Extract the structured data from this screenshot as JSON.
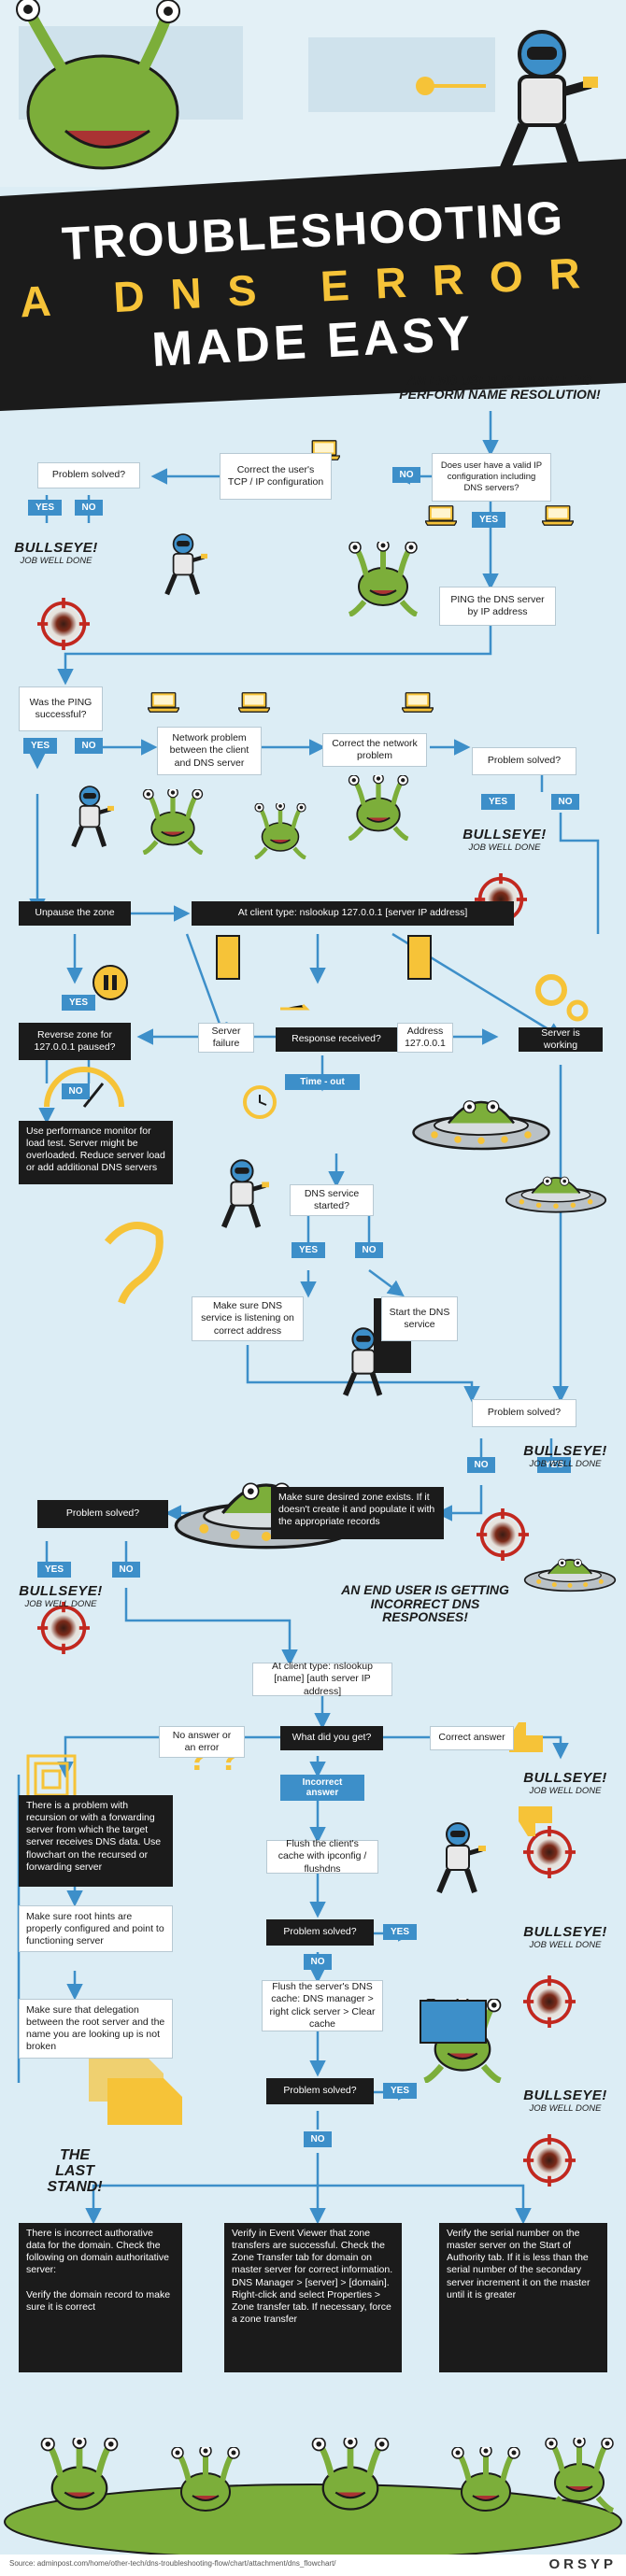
{
  "title": {
    "line1": "TROUBLESHOOTING",
    "line2": "A DNS ERROR",
    "line3": "MADE EASY"
  },
  "intro": "AN END USER IS UNABLE TO PERFORM NAME RESOLUTION!",
  "incorrect_banner": "AN END USER IS GETTING INCORRECT DNS RESPONSES!",
  "last_stand": "THE LAST STAND!",
  "bullseye": {
    "title": "BULLSEYE!",
    "subtitle": "JOB WELL DONE"
  },
  "labels": {
    "yes": "YES",
    "no": "NO"
  },
  "steps": {
    "valid_ip": "Does user have a valid IP configuration including DNS servers?",
    "correct_tcp": "Correct the user's TCP / IP configuration",
    "solved": "Problem solved?",
    "ping_dns": "PING the DNS server by IP address",
    "ping_success": "Was the PING successful?",
    "network_problem": "Network problem between the client and DNS server",
    "correct_network": "Correct the network problem",
    "unpause": "Unpause the zone",
    "nslookup1": "At client type: nslookup 127.0.0.1 [server IP address]",
    "reverse_zone": "Reverse zone for 127.0.0.1 paused?",
    "server_failure": "Server failure",
    "response_received": "Response received?",
    "address": "Address 127.0.0.1",
    "server_working": "Server is working",
    "timeout": "Time - out",
    "perf_monitor": "Use performance monitor for load test. Server might be overloaded. Reduce server load or add additional DNS servers",
    "dns_started": "DNS service started?",
    "make_sure_listening": "Make sure DNS service is listening on correct address",
    "start_dns": "Start the DNS service",
    "zone_exists": "Make sure desired zone exists. If it doesn't create it and populate it with the appropriate records",
    "nslookup2": "At client type: nslookup [name] [auth server IP address]",
    "what_get": "What did you get?",
    "no_answer": "No answer or an error",
    "correct_answer": "Correct answer",
    "incorrect_answer": "Incorrect answer",
    "recursion": "There is a problem with recursion or with a forwarding server from which the target server receives DNS data. Use flowchart on the recursed or forwarding server",
    "root_hints": "Make sure root hints are properly configured and point to functioning server",
    "delegation": "Make sure that delegation between the root server and the name you are looking up is not broken",
    "flush_client": "Flush the client's cache with ipconfig / flushdns",
    "flush_server": "Flush the server's DNS cache: DNS manager > right click server > Clear cache",
    "incorrect_auth": "There is incorrect authorative data for the domain. Check the following on domain authoritative server:\n\nVerify the domain record to make sure it is correct",
    "event_viewer": "Verify in Event Viewer that zone transfers are successful. Check the Zone Transfer tab for domain on master server for correct information. DNS Manager > [server] > [domain]. Right-click and select Properties > Zone transfer tab. If necessary, force a zone transfer",
    "serial_number": "Verify the serial number on the master server on the Start of Authority tab. If it is less than the serial number of the secondary server increment it on the master until it is greater"
  },
  "source": "Source: adminpost.com/home/other-tech/dns-troubleshooting-flow/chart/attachment/dns_flowchart/",
  "brand": "ORSYP",
  "colors": {
    "background": "#dcedf5",
    "accent_blue": "#3d8fc9",
    "yellow": "#f6c338",
    "dark": "#1b1b1b",
    "alien_green": "#7cae3a",
    "target_red": "#c2281f"
  }
}
